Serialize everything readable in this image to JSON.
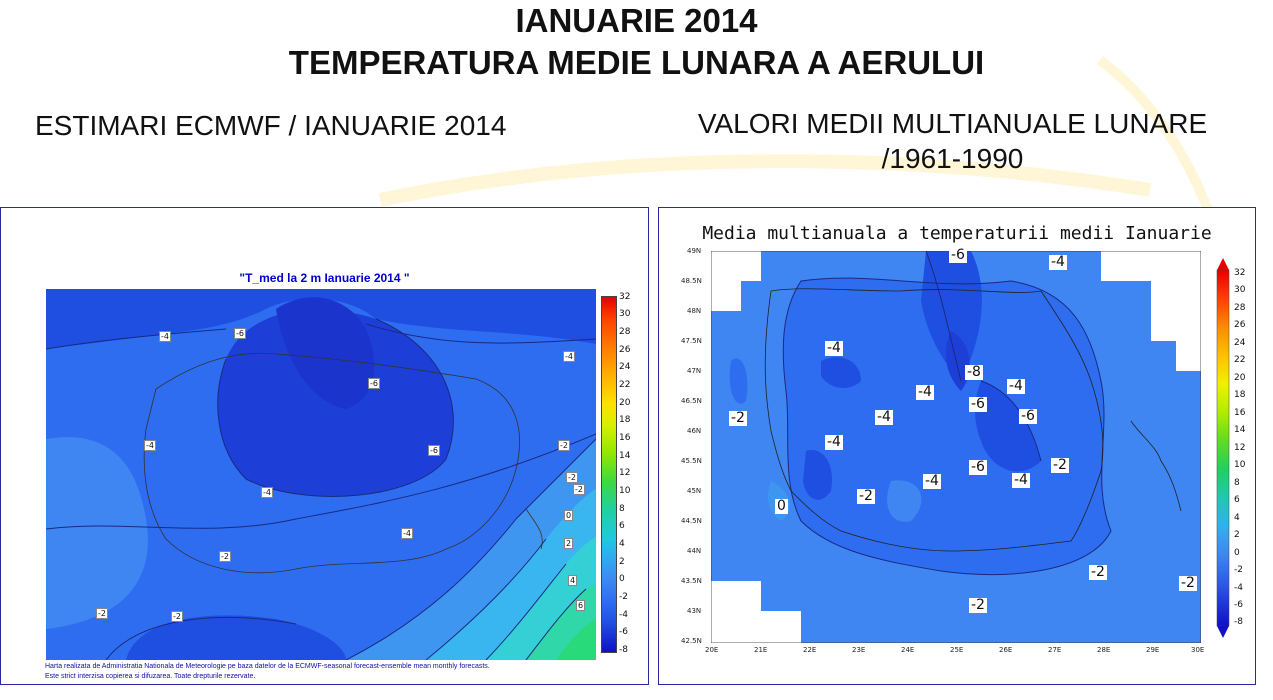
{
  "header": {
    "title_line1": "IANUARIE 2014",
    "title_line2": "TEMPERATURA MEDIE LUNARA A AERULUI"
  },
  "left_panel": {
    "heading": "ESTIMARI ECMWF / IANUARIE 2014",
    "map_title": "\"T_med la 2 m Ianuarie 2014 \"",
    "credit_line1": "Harta realizata de Administratia Nationala de Meteorologie pe baza datelor de la ECMWF-seasonal forecast-ensemble mean monthly forecasts.",
    "credit_line2": "Este strict interzisa copierea si difuzarea. Toate drepturile rezervate.",
    "colorbar_labels": [
      "32",
      "30",
      "28",
      "26",
      "24",
      "22",
      "20",
      "18",
      "16",
      "14",
      "12",
      "10",
      "8",
      "6",
      "4",
      "2",
      "0",
      "-2",
      "-4",
      "-6",
      "-8"
    ],
    "contour_labels": [
      "-4",
      "-6",
      "-6",
      "-4",
      "-6",
      "-4",
      "-4",
      "-2",
      "-4",
      "-2",
      "-2",
      "-2",
      "-2",
      "0",
      "2",
      "4",
      "6",
      "-2"
    ]
  },
  "right_panel": {
    "heading_line1": "VALORI MEDII MULTIANUALE LUNARE",
    "heading_line2": "/1961-1990",
    "map_title": "Media multianuala a temperaturii medii Ianuarie",
    "colorbar_labels": [
      "32",
      "30",
      "28",
      "26",
      "24",
      "22",
      "20",
      "18",
      "16",
      "14",
      "12",
      "10",
      "8",
      "6",
      "4",
      "2",
      "0",
      "-2",
      "-4",
      "-6",
      "-8"
    ],
    "lat_ticks": [
      "49N",
      "48.5N",
      "48N",
      "47.5N",
      "47N",
      "46.5N",
      "46N",
      "45.5N",
      "45N",
      "44.5N",
      "44N",
      "43.5N",
      "43N",
      "42.5N"
    ],
    "lon_ticks": [
      "20E",
      "21E",
      "22E",
      "23E",
      "24E",
      "25E",
      "26E",
      "27E",
      "28E",
      "29E",
      "30E"
    ],
    "contour_labels": [
      "-6",
      "-4",
      "-4",
      "-8",
      "-4",
      "-2",
      "-4",
      "-4",
      "-6",
      "-6",
      "-4",
      "-4",
      "-6",
      "-2",
      "-4",
      "-2",
      "0",
      "-2",
      "-2",
      "-2"
    ]
  },
  "colors": {
    "heading_text": "#111111",
    "map_title_left": "#0000cc",
    "panel_border": "#2a2aa0"
  }
}
